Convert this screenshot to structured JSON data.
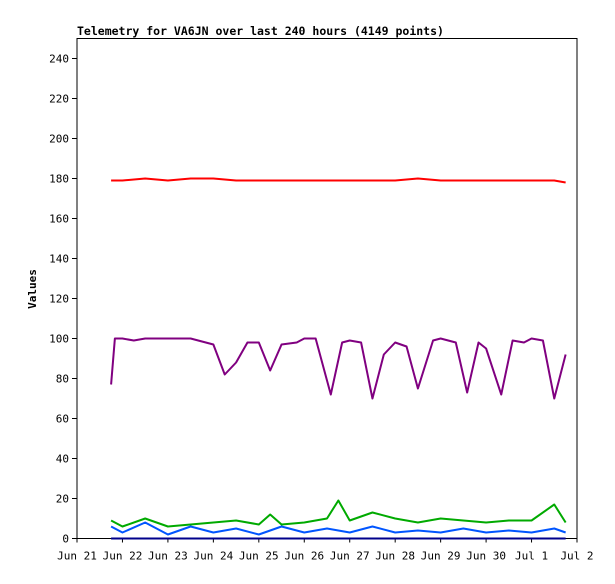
{
  "chart_data": {
    "type": "line",
    "title": "Telemetry for VA6JN over last 240 hours (4149 points)",
    "xlabel": "",
    "ylabel": "Values",
    "ylim": [
      0,
      250
    ],
    "yticks": [
      0,
      20,
      40,
      60,
      80,
      100,
      120,
      140,
      160,
      180,
      200,
      220,
      240
    ],
    "xlim": [
      "2023-06-21",
      "2023-07-02"
    ],
    "xticks": [
      {
        "date": "2023-06-21",
        "label": "Jun 21"
      },
      {
        "date": "2023-06-22",
        "label": "Jun 22"
      },
      {
        "date": "2023-06-23",
        "label": "Jun 23"
      },
      {
        "date": "2023-06-24",
        "label": "Jun 24"
      },
      {
        "date": "2023-06-25",
        "label": "Jun 25"
      },
      {
        "date": "2023-06-26",
        "label": "Jun 26"
      },
      {
        "date": "2023-06-27",
        "label": "Jun 27"
      },
      {
        "date": "2023-06-28",
        "label": "Jun 28"
      },
      {
        "date": "2023-06-29",
        "label": "Jun 29"
      },
      {
        "date": "2023-06-30",
        "label": "Jun 30"
      },
      {
        "date": "2023-07-01",
        "label": "Jul 1"
      },
      {
        "date": "2023-07-02",
        "label": "Jul 2"
      }
    ],
    "grid": false,
    "legend": "none",
    "series": [
      {
        "color": "#ff0000",
        "x": [
          "2023-06-21T18:00",
          "2023-06-22T00:00",
          "2023-06-22T12:00",
          "2023-06-23T00:00",
          "2023-06-23T12:00",
          "2023-06-24T00:00",
          "2023-06-24T12:00",
          "2023-06-25T00:00",
          "2023-06-25T12:00",
          "2023-06-26T00:00",
          "2023-06-26T12:00",
          "2023-06-27T00:00",
          "2023-06-27T12:00",
          "2023-06-28T00:00",
          "2023-06-28T12:00",
          "2023-06-29T00:00",
          "2023-06-29T12:00",
          "2023-06-30T00:00",
          "2023-06-30T12:00",
          "2023-07-01T00:00",
          "2023-07-01T12:00",
          "2023-07-01T18:00"
        ],
        "values": [
          179,
          179,
          180,
          179,
          180,
          180,
          179,
          179,
          179,
          179,
          179,
          179,
          179,
          179,
          180,
          179,
          179,
          179,
          179,
          179,
          179,
          178
        ]
      },
      {
        "color": "#800080",
        "x": [
          "2023-06-21T18:00",
          "2023-06-21T20:00",
          "2023-06-22T00:00",
          "2023-06-22T06:00",
          "2023-06-22T12:00",
          "2023-06-23T00:00",
          "2023-06-23T12:00",
          "2023-06-23T20:00",
          "2023-06-24T00:00",
          "2023-06-24T06:00",
          "2023-06-24T12:00",
          "2023-06-24T18:00",
          "2023-06-25T00:00",
          "2023-06-25T06:00",
          "2023-06-25T12:00",
          "2023-06-25T20:00",
          "2023-06-26T00:00",
          "2023-06-26T06:00",
          "2023-06-26T14:00",
          "2023-06-26T20:00",
          "2023-06-27T00:00",
          "2023-06-27T06:00",
          "2023-06-27T12:00",
          "2023-06-27T18:00",
          "2023-06-28T00:00",
          "2023-06-28T06:00",
          "2023-06-28T12:00",
          "2023-06-28T20:00",
          "2023-06-29T00:00",
          "2023-06-29T08:00",
          "2023-06-29T14:00",
          "2023-06-29T20:00",
          "2023-06-30T00:00",
          "2023-06-30T08:00",
          "2023-06-30T14:00",
          "2023-06-30T20:00",
          "2023-07-01T00:00",
          "2023-07-01T06:00",
          "2023-07-01T12:00",
          "2023-07-01T18:00"
        ],
        "values": [
          77,
          100,
          100,
          99,
          100,
          100,
          100,
          98,
          97,
          82,
          88,
          98,
          98,
          84,
          97,
          98,
          100,
          100,
          72,
          98,
          99,
          98,
          70,
          92,
          98,
          96,
          75,
          99,
          100,
          98,
          73,
          98,
          95,
          72,
          99,
          98,
          100,
          99,
          70,
          92
        ]
      },
      {
        "color": "#00aa00",
        "x": [
          "2023-06-21T18:00",
          "2023-06-22T00:00",
          "2023-06-22T12:00",
          "2023-06-23T00:00",
          "2023-06-23T12:00",
          "2023-06-24T00:00",
          "2023-06-24T12:00",
          "2023-06-25T00:00",
          "2023-06-25T06:00",
          "2023-06-25T12:00",
          "2023-06-26T00:00",
          "2023-06-26T12:00",
          "2023-06-26T18:00",
          "2023-06-27T00:00",
          "2023-06-27T12:00",
          "2023-06-28T00:00",
          "2023-06-28T12:00",
          "2023-06-29T00:00",
          "2023-06-29T12:00",
          "2023-06-30T00:00",
          "2023-06-30T12:00",
          "2023-07-01T00:00",
          "2023-07-01T12:00",
          "2023-07-01T18:00"
        ],
        "values": [
          9,
          6,
          10,
          6,
          7,
          8,
          9,
          7,
          12,
          7,
          8,
          10,
          19,
          9,
          13,
          10,
          8,
          10,
          9,
          8,
          9,
          9,
          17,
          8
        ]
      },
      {
        "color": "#0055ff",
        "x": [
          "2023-06-21T18:00",
          "2023-06-22T00:00",
          "2023-06-22T12:00",
          "2023-06-23T00:00",
          "2023-06-23T12:00",
          "2023-06-24T00:00",
          "2023-06-24T12:00",
          "2023-06-25T00:00",
          "2023-06-25T12:00",
          "2023-06-26T00:00",
          "2023-06-26T12:00",
          "2023-06-27T00:00",
          "2023-06-27T12:00",
          "2023-06-28T00:00",
          "2023-06-28T12:00",
          "2023-06-29T00:00",
          "2023-06-29T12:00",
          "2023-06-30T00:00",
          "2023-06-30T12:00",
          "2023-07-01T00:00",
          "2023-07-01T12:00",
          "2023-07-01T18:00"
        ],
        "values": [
          6,
          3,
          8,
          2,
          6,
          3,
          5,
          2,
          6,
          3,
          5,
          3,
          6,
          3,
          4,
          3,
          5,
          3,
          4,
          3,
          5,
          3
        ]
      },
      {
        "color": "#00008b",
        "x": [
          "2023-06-21T18:00",
          "2023-07-01T18:00"
        ],
        "values": [
          0,
          0
        ]
      }
    ]
  }
}
